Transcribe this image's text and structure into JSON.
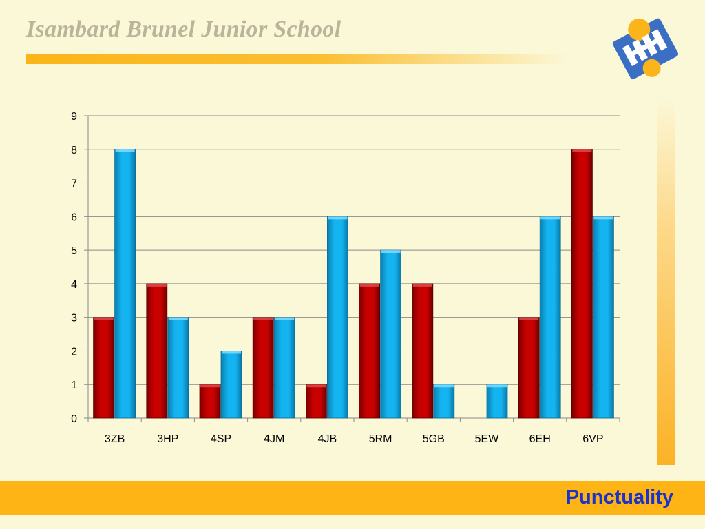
{
  "header": {
    "school_name": "Isambard Brunel Junior School"
  },
  "footer": {
    "label": "Punctuality"
  },
  "colors": {
    "accent": "#fdb414",
    "series_red": "#c80000",
    "series_blue": "#14b4f0",
    "footer_text": "#1b33c8"
  },
  "logo": {
    "icon": "school-logo-icon"
  },
  "chart_data": {
    "type": "bar",
    "categories": [
      "3ZB",
      "3HP",
      "4SP",
      "4JM",
      "4JB",
      "5RM",
      "5GB",
      "5EW",
      "6EH",
      "6VP"
    ],
    "series": [
      {
        "values": [
          3,
          4,
          1,
          3,
          1,
          4,
          4,
          0,
          3,
          8
        ],
        "color": "#c80000"
      },
      {
        "values": [
          8,
          3,
          2,
          3,
          6,
          5,
          1,
          1,
          6,
          6
        ],
        "color": "#14b4f0"
      }
    ],
    "yticks": [
      "0",
      "1",
      "2",
      "3",
      "4",
      "5",
      "6",
      "7",
      "8",
      "9"
    ],
    "ylim": [
      0,
      9
    ],
    "grid": true,
    "legend": "none"
  }
}
